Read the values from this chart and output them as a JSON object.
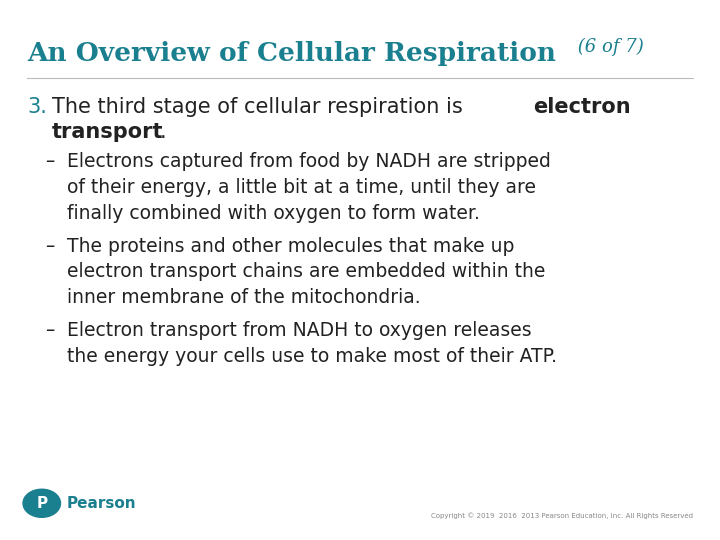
{
  "title_main": "An Overview of Cellular Respiration",
  "title_suffix": " (6 of 7)",
  "title_color": "#1a7f8e",
  "background_color": "#ffffff",
  "body_color": "#222222",
  "number_color": "#1a7f8e",
  "pearson_color": "#1a7f8e",
  "pearson_text": "Pearson",
  "copyright_text": "Copyright © 2019  2016  2013 Pearson Education, Inc. All Rights Reserved",
  "title_fontsize": 19,
  "title_suffix_fontsize": 13,
  "heading_fontsize": 15,
  "body_fontsize": 13.5,
  "line_sep": 0.048
}
